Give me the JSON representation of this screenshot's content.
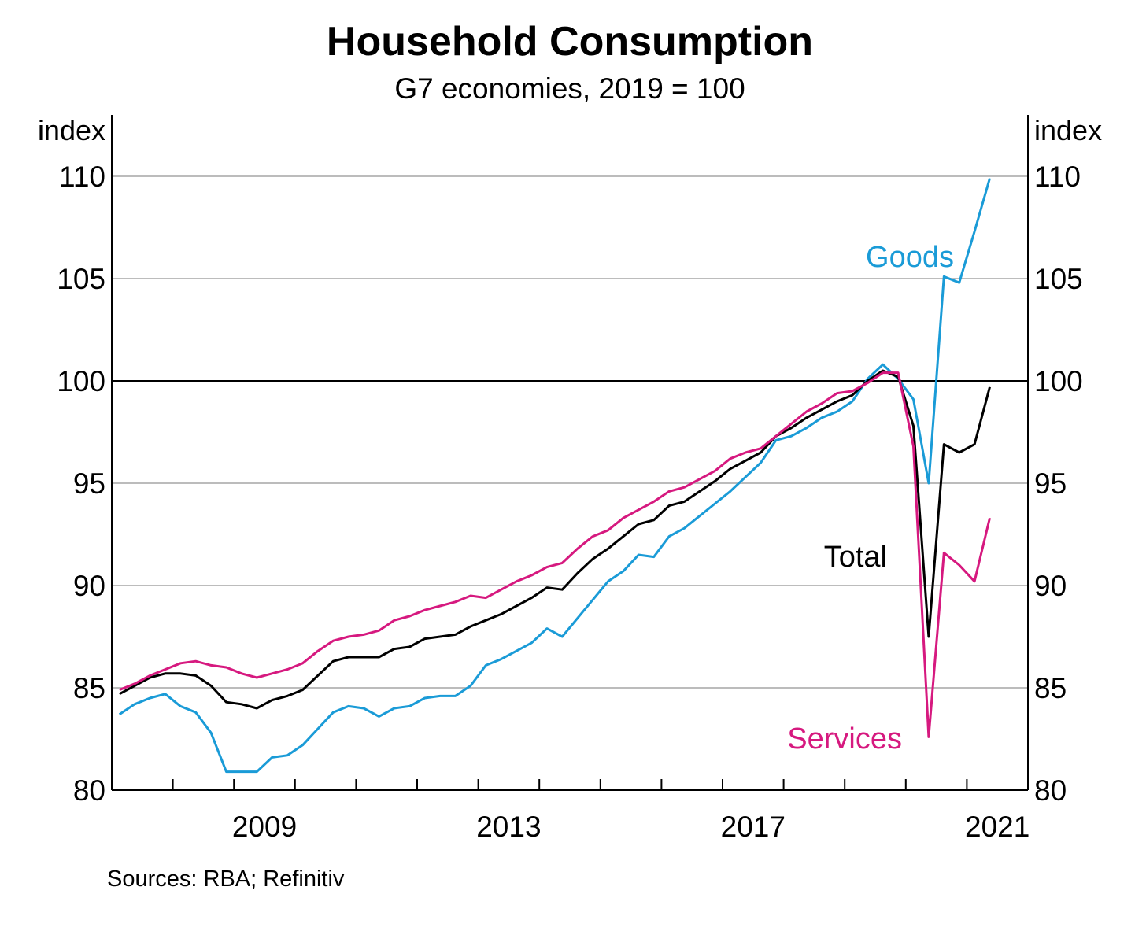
{
  "chart_data": {
    "type": "line",
    "title": "Household Consumption",
    "subtitle": "G7 economies, 2019 = 100",
    "ylabel_left": "index",
    "ylabel_right": "index",
    "ylim": [
      80,
      113
    ],
    "y_ticks": [
      80,
      85,
      90,
      95,
      100,
      105,
      110
    ],
    "reference_line": 100,
    "x_range": [
      2007.0,
      2022.0
    ],
    "x_ticks": [
      {
        "value": 2009,
        "label": "2009"
      },
      {
        "value": 2013,
        "label": "2013"
      },
      {
        "value": 2017,
        "label": "2017"
      },
      {
        "value": 2021,
        "label": "2021"
      }
    ],
    "x_year_boundaries": [
      2008,
      2009,
      2010,
      2011,
      2012,
      2013,
      2014,
      2015,
      2016,
      2017,
      2018,
      2019,
      2020,
      2021
    ],
    "grid": true,
    "source": "Sources: RBA; Refinitiv",
    "series": [
      {
        "name": "Goods",
        "color": "#1a9bd7",
        "label_pos": "upper-right",
        "x": [
          2007.125,
          2007.375,
          2007.625,
          2007.875,
          2008.125,
          2008.375,
          2008.625,
          2008.875,
          2009.125,
          2009.375,
          2009.625,
          2009.875,
          2010.125,
          2010.375,
          2010.625,
          2010.875,
          2011.125,
          2011.375,
          2011.625,
          2011.875,
          2012.125,
          2012.375,
          2012.625,
          2012.875,
          2013.125,
          2013.375,
          2013.625,
          2013.875,
          2014.125,
          2014.375,
          2014.625,
          2014.875,
          2015.125,
          2015.375,
          2015.625,
          2015.875,
          2016.125,
          2016.375,
          2016.625,
          2016.875,
          2017.125,
          2017.375,
          2017.625,
          2017.875,
          2018.125,
          2018.375,
          2018.625,
          2018.875,
          2019.125,
          2019.375,
          2019.625,
          2019.875,
          2020.125,
          2020.375,
          2020.625,
          2020.875,
          2021.125,
          2021.375
        ],
        "values": [
          83.7,
          84.2,
          84.5,
          84.7,
          84.1,
          83.8,
          82.8,
          80.9,
          80.9,
          80.9,
          81.6,
          81.7,
          82.2,
          83.0,
          83.8,
          84.1,
          84.0,
          83.6,
          84.0,
          84.1,
          84.5,
          84.6,
          84.6,
          85.1,
          86.1,
          86.4,
          86.8,
          87.2,
          87.9,
          87.5,
          88.4,
          89.3,
          90.2,
          90.7,
          91.5,
          91.4,
          92.4,
          92.8,
          93.4,
          94.0,
          94.6,
          95.3,
          96.0,
          97.1,
          97.3,
          97.7,
          98.2,
          98.5,
          99.0,
          100.1,
          100.8,
          100.1,
          99.1,
          95.0,
          105.1,
          104.8,
          107.3,
          109.9
        ]
      },
      {
        "name": "Total",
        "color": "#000000",
        "label_pos": "middle-right",
        "x": [
          2007.125,
          2007.375,
          2007.625,
          2007.875,
          2008.125,
          2008.375,
          2008.625,
          2008.875,
          2009.125,
          2009.375,
          2009.625,
          2009.875,
          2010.125,
          2010.375,
          2010.625,
          2010.875,
          2011.125,
          2011.375,
          2011.625,
          2011.875,
          2012.125,
          2012.375,
          2012.625,
          2012.875,
          2013.125,
          2013.375,
          2013.625,
          2013.875,
          2014.125,
          2014.375,
          2014.625,
          2014.875,
          2015.125,
          2015.375,
          2015.625,
          2015.875,
          2016.125,
          2016.375,
          2016.625,
          2016.875,
          2017.125,
          2017.375,
          2017.625,
          2017.875,
          2018.125,
          2018.375,
          2018.625,
          2018.875,
          2019.125,
          2019.375,
          2019.625,
          2019.875,
          2020.125,
          2020.375,
          2020.625,
          2020.875,
          2021.125,
          2021.375
        ],
        "values": [
          84.7,
          85.1,
          85.5,
          85.7,
          85.7,
          85.6,
          85.1,
          84.3,
          84.2,
          84.0,
          84.4,
          84.6,
          84.9,
          85.6,
          86.3,
          86.5,
          86.5,
          86.5,
          86.9,
          87.0,
          87.4,
          87.5,
          87.6,
          88.0,
          88.3,
          88.6,
          89.0,
          89.4,
          89.9,
          89.8,
          90.6,
          91.3,
          91.8,
          92.4,
          93.0,
          93.2,
          93.9,
          94.1,
          94.6,
          95.1,
          95.7,
          96.1,
          96.5,
          97.3,
          97.7,
          98.2,
          98.6,
          99.0,
          99.3,
          100.0,
          100.5,
          100.2,
          97.8,
          87.5,
          96.9,
          96.5,
          96.9,
          99.7
        ]
      },
      {
        "name": "Services",
        "color": "#d6197f",
        "label_pos": "lower-right",
        "x": [
          2007.125,
          2007.375,
          2007.625,
          2007.875,
          2008.125,
          2008.375,
          2008.625,
          2008.875,
          2009.125,
          2009.375,
          2009.625,
          2009.875,
          2010.125,
          2010.375,
          2010.625,
          2010.875,
          2011.125,
          2011.375,
          2011.625,
          2011.875,
          2012.125,
          2012.375,
          2012.625,
          2012.875,
          2013.125,
          2013.375,
          2013.625,
          2013.875,
          2014.125,
          2014.375,
          2014.625,
          2014.875,
          2015.125,
          2015.375,
          2015.625,
          2015.875,
          2016.125,
          2016.375,
          2016.625,
          2016.875,
          2017.125,
          2017.375,
          2017.625,
          2017.875,
          2018.125,
          2018.375,
          2018.625,
          2018.875,
          2019.125,
          2019.375,
          2019.625,
          2019.875,
          2020.125,
          2020.375,
          2020.625,
          2020.875,
          2021.125,
          2021.375
        ],
        "values": [
          84.9,
          85.2,
          85.6,
          85.9,
          86.2,
          86.3,
          86.1,
          86.0,
          85.7,
          85.5,
          85.7,
          85.9,
          86.2,
          86.8,
          87.3,
          87.5,
          87.6,
          87.8,
          88.3,
          88.5,
          88.8,
          89.0,
          89.2,
          89.5,
          89.4,
          89.8,
          90.2,
          90.5,
          90.9,
          91.1,
          91.8,
          92.4,
          92.7,
          93.3,
          93.7,
          94.1,
          94.6,
          94.8,
          95.2,
          95.6,
          96.2,
          96.5,
          96.7,
          97.3,
          97.9,
          98.5,
          98.9,
          99.4,
          99.5,
          99.9,
          100.4,
          100.4,
          96.8,
          82.6,
          91.6,
          91.0,
          90.2,
          93.3
        ]
      }
    ]
  }
}
